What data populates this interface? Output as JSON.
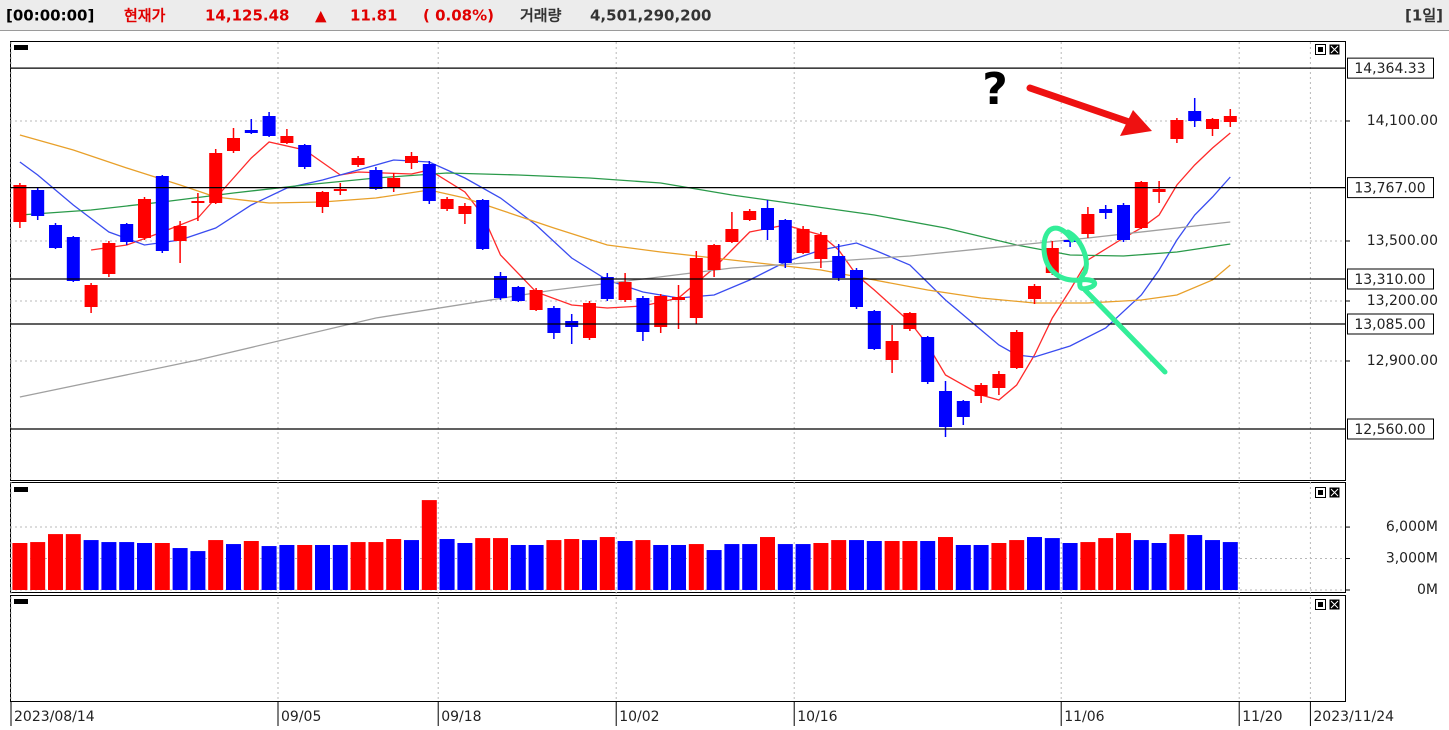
{
  "header": {
    "time": "[00:00:00]",
    "price_label": "현재가",
    "price": "14,125.48",
    "arrow": "▲",
    "change": "11.81",
    "change_pct": "( 0.08%)",
    "volume_label": "거래량",
    "volume": "4,501,290,200",
    "period": "[1일]"
  },
  "annotation": "?",
  "chart_data": [
    {
      "type": "candlestick",
      "categories": [
        "2023/08/14",
        null,
        null,
        null,
        null,
        null,
        null,
        null,
        null,
        null,
        null,
        null,
        null,
        null,
        null,
        "09/05",
        null,
        null,
        null,
        null,
        null,
        null,
        null,
        null,
        "09/18",
        null,
        null,
        null,
        null,
        null,
        null,
        null,
        null,
        null,
        "10/02",
        null,
        null,
        null,
        null,
        null,
        null,
        null,
        null,
        null,
        "10/16",
        null,
        null,
        null,
        null,
        null,
        null,
        null,
        null,
        null,
        null,
        null,
        null,
        null,
        null,
        "11/06",
        null,
        null,
        null,
        null,
        null,
        null,
        null,
        null,
        null,
        "11/20",
        null,
        null,
        null,
        "2023/11/24",
        null
      ],
      "open": [
        13595,
        13755,
        13580,
        13520,
        13170,
        13335,
        13585,
        13515,
        13825,
        13500,
        13690,
        13690,
        13950,
        14055,
        14125,
        13990,
        13980,
        13670,
        13750,
        13880,
        13855,
        13770,
        13890,
        13885,
        13660,
        13635,
        13705,
        13325,
        13270,
        13155,
        13165,
        13100,
        13015,
        13320,
        13205,
        13215,
        13070,
        13205,
        13115,
        13355,
        13495,
        13605,
        13665,
        13605,
        13440,
        13410,
        13425,
        13355,
        13150,
        12905,
        13060,
        13020,
        12750,
        12700,
        12725,
        12765,
        12865,
        13210,
        13340,
        13505,
        13535,
        13660,
        13680,
        13565,
        13745,
        14010,
        14150,
        14060,
        14095,
        null,
        null,
        null,
        null,
        null,
        null
      ],
      "high": [
        13790,
        13770,
        13590,
        13525,
        13290,
        13500,
        13590,
        13720,
        13830,
        13600,
        13740,
        13960,
        14065,
        14110,
        14145,
        14060,
        13985,
        13750,
        13790,
        13925,
        13870,
        13840,
        13945,
        13900,
        13720,
        13690,
        13710,
        13345,
        13275,
        13265,
        13175,
        13135,
        13200,
        13340,
        13340,
        13225,
        13235,
        13280,
        13450,
        13485,
        13645,
        13660,
        13705,
        13610,
        13575,
        13545,
        13485,
        13365,
        13155,
        13080,
        13145,
        13025,
        12800,
        12705,
        12790,
        12850,
        13055,
        13285,
        13500,
        13545,
        13670,
        13680,
        13690,
        13800,
        13800,
        14115,
        14215,
        14115,
        14160,
        null,
        null,
        null,
        null,
        null,
        null
      ],
      "low": [
        13565,
        13605,
        13460,
        13295,
        13140,
        13320,
        13480,
        13505,
        13440,
        13390,
        13600,
        13685,
        13940,
        14035,
        14020,
        13985,
        13860,
        13640,
        13730,
        13870,
        13755,
        13745,
        13860,
        13685,
        13650,
        13585,
        13455,
        13205,
        13195,
        13150,
        13010,
        12985,
        13005,
        13200,
        13195,
        13000,
        13040,
        13060,
        13085,
        13320,
        13490,
        13600,
        13505,
        13365,
        13435,
        13365,
        13300,
        13160,
        12955,
        12840,
        13050,
        12785,
        12520,
        12580,
        12690,
        12730,
        12860,
        13185,
        13330,
        13470,
        13515,
        13610,
        13495,
        13560,
        13690,
        13990,
        14070,
        14025,
        14070,
        null,
        null,
        null,
        null,
        null,
        null
      ],
      "close": [
        13780,
        13625,
        13465,
        13300,
        13280,
        13490,
        13495,
        13710,
        13450,
        13575,
        13700,
        13940,
        14015,
        14040,
        14025,
        14025,
        13870,
        13745,
        13760,
        13915,
        13760,
        13815,
        13925,
        13700,
        13710,
        13675,
        13460,
        13215,
        13200,
        13255,
        13040,
        13070,
        13190,
        13210,
        13295,
        13045,
        13225,
        13220,
        13415,
        13480,
        13560,
        13650,
        13555,
        13390,
        13560,
        13530,
        13315,
        13170,
        12960,
        13000,
        13140,
        12795,
        12570,
        12620,
        12780,
        12835,
        13045,
        13275,
        13465,
        13495,
        13635,
        13640,
        13505,
        13795,
        13760,
        14105,
        14100,
        14110,
        14125,
        null,
        null,
        null,
        null,
        null,
        null
      ],
      "up_color": "#ff0000",
      "down_color": "#0000ff",
      "moving_averages": [
        {
          "color": "#ff2a2a",
          "x": [
            4,
            6,
            8,
            10,
            12,
            13,
            14,
            16,
            18,
            19,
            22,
            23,
            25,
            26,
            27,
            29,
            31,
            33,
            35,
            37,
            39,
            40,
            41,
            43,
            45,
            46,
            47,
            48,
            50,
            51,
            52,
            54,
            55,
            56,
            57,
            58,
            59,
            60,
            62,
            63,
            64,
            65,
            66,
            67,
            68
          ],
          "values": [
            13455,
            13480,
            13545,
            13615,
            13815,
            13915,
            13995,
            13955,
            13830,
            13845,
            13835,
            13855,
            13745,
            13630,
            13430,
            13245,
            13180,
            13165,
            13175,
            13215,
            13365,
            13455,
            13545,
            13580,
            13530,
            13455,
            13330,
            13255,
            13095,
            12980,
            12830,
            12730,
            12705,
            12780,
            12930,
            13115,
            13255,
            13405,
            13515,
            13565,
            13630,
            13780,
            13880,
            13965,
            14040
          ]
        },
        {
          "color": "#3a4cf0",
          "x": [
            0,
            1,
            3,
            5,
            7,
            9,
            11,
            13,
            15,
            17,
            19,
            21,
            23,
            25,
            27,
            29,
            31,
            33,
            35,
            37,
            39,
            41,
            43,
            45,
            47,
            48,
            50,
            52,
            54,
            55,
            56,
            57,
            59,
            61,
            63,
            64,
            65,
            66,
            67,
            68
          ],
          "values": [
            13895,
            13830,
            13680,
            13545,
            13480,
            13505,
            13565,
            13680,
            13765,
            13805,
            13855,
            13905,
            13895,
            13815,
            13715,
            13580,
            13415,
            13305,
            13245,
            13215,
            13230,
            13305,
            13395,
            13455,
            13490,
            13455,
            13380,
            13205,
            13055,
            12980,
            12930,
            12920,
            12975,
            13065,
            13230,
            13355,
            13505,
            13630,
            13720,
            13820
          ]
        },
        {
          "color": "#e8a02a",
          "x": [
            0,
            3,
            6,
            9,
            11,
            14,
            17,
            20,
            23,
            25,
            27,
            30,
            33,
            36,
            39,
            42,
            45,
            48,
            51,
            54,
            57,
            60,
            63,
            65,
            67,
            68
          ],
          "values": [
            14030,
            13955,
            13865,
            13780,
            13720,
            13690,
            13695,
            13715,
            13755,
            13715,
            13655,
            13565,
            13480,
            13445,
            13415,
            13385,
            13355,
            13305,
            13255,
            13215,
            13190,
            13190,
            13205,
            13230,
            13305,
            13380
          ]
        },
        {
          "color": "#2a9a4a",
          "x": [
            0,
            4,
            8,
            12,
            16,
            20,
            24,
            28,
            32,
            36,
            40,
            44,
            48,
            52,
            56,
            59,
            62,
            65,
            68
          ],
          "values": [
            13630,
            13655,
            13695,
            13740,
            13780,
            13815,
            13840,
            13830,
            13815,
            13790,
            13730,
            13680,
            13630,
            13565,
            13480,
            13430,
            13425,
            13445,
            13485
          ]
        },
        {
          "color": "#a0a0a0",
          "x": [
            0,
            10,
            20,
            30,
            40,
            50,
            60,
            68
          ],
          "values": [
            12720,
            12905,
            13115,
            13255,
            13365,
            13425,
            13515,
            13595
          ]
        }
      ],
      "ylim": [
        12305,
        14495
      ],
      "yticks": [
        {
          "value": 14100,
          "label": "14,100.00"
        },
        {
          "value": 13500,
          "label": "13,500.00"
        },
        {
          "value": 13200,
          "label": "13,200.00"
        },
        {
          "value": 12900,
          "label": "12,900.00"
        }
      ],
      "levels": [
        {
          "value": 14364.33,
          "label": "14,364.33"
        },
        {
          "value": 13767,
          "label": "13,767.00"
        },
        {
          "value": 13310,
          "label": "13,310.00"
        },
        {
          "value": 13085,
          "label": "13,085.00"
        },
        {
          "value": 12560,
          "label": "12,560.00"
        }
      ],
      "grid": true
    },
    {
      "type": "bar",
      "values": [
        4480,
        4570,
        5330,
        5330,
        4760,
        4570,
        4570,
        4480,
        4480,
        4000,
        3710,
        4760,
        4380,
        4670,
        4190,
        4290,
        4290,
        4290,
        4290,
        4570,
        4570,
        4860,
        4760,
        8570,
        4860,
        4480,
        4950,
        4950,
        4290,
        4290,
        4760,
        4860,
        4760,
        5050,
        4670,
        4760,
        4290,
        4290,
        4380,
        3810,
        4380,
        4380,
        5050,
        4380,
        4380,
        4480,
        4760,
        4760,
        4670,
        4670,
        4670,
        4670,
        5050,
        4290,
        4290,
        4480,
        4760,
        5050,
        4950,
        4480,
        4570,
        4950,
        5430,
        4760,
        4480,
        5330,
        5240,
        4760,
        4570,
        null,
        null,
        null,
        null,
        null,
        null
      ],
      "colors": [
        "#ff0000",
        "#ff0000",
        "#ff0000",
        "#ff0000",
        "#0000ff",
        "#0000ff",
        "#0000ff",
        "#0000ff",
        "#ff0000",
        "#0000ff",
        "#0000ff",
        "#ff0000",
        "#0000ff",
        "#ff0000",
        "#0000ff",
        "#0000ff",
        "#ff0000",
        "#0000ff",
        "#0000ff",
        "#ff0000",
        "#ff0000",
        "#ff0000",
        "#0000ff",
        "#ff0000",
        "#0000ff",
        "#0000ff",
        "#ff0000",
        "#ff0000",
        "#0000ff",
        "#0000ff",
        "#ff0000",
        "#ff0000",
        "#0000ff",
        "#ff0000",
        "#0000ff",
        "#ff0000",
        "#0000ff",
        "#0000ff",
        "#ff0000",
        "#0000ff",
        "#0000ff",
        "#0000ff",
        "#ff0000",
        "#0000ff",
        "#0000ff",
        "#ff0000",
        "#ff0000",
        "#0000ff",
        "#0000ff",
        "#ff0000",
        "#ff0000",
        "#0000ff",
        "#ff0000",
        "#0000ff",
        "#0000ff",
        "#ff0000",
        "#ff0000",
        "#0000ff",
        "#0000ff",
        "#0000ff",
        "#ff0000",
        "#ff0000",
        "#ff0000",
        "#0000ff",
        "#0000ff",
        "#ff0000",
        "#0000ff",
        "#0000ff",
        "#0000ff",
        null,
        null,
        null,
        null,
        null,
        null
      ],
      "ylim": [
        0,
        10200
      ],
      "yticks": [
        {
          "value": 6000,
          "label": "6,000M"
        },
        {
          "value": 3000,
          "label": "3,000M"
        },
        {
          "value": 0,
          "label": "0M"
        }
      ],
      "grid": true
    }
  ]
}
